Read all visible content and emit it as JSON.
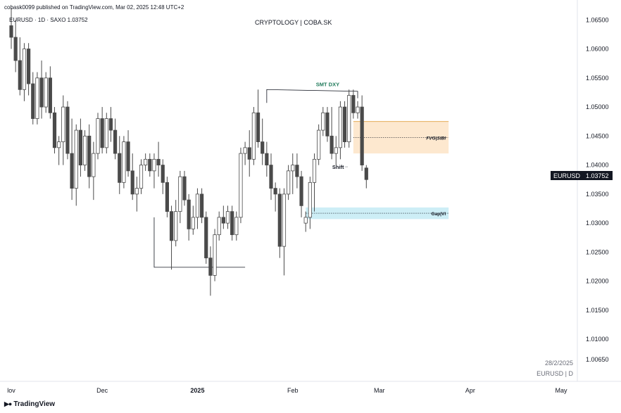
{
  "header": {
    "published_line": "cobask0099 published on TradingView.com, Mar 02, 2025 12:48 UTC+2",
    "symbol_line": "EURUSD · 1D · SAXO  1.03752",
    "center_title": "CRYPTOLOGY | COBA.SK"
  },
  "footer": {
    "brand": "TradingView",
    "brand_icon": "tradingview-logo-icon",
    "date_label": "28/2/2025",
    "symbol_label": "EURUSD | D"
  },
  "price_tag": {
    "symbol": "EURUSD",
    "price": "1.03752"
  },
  "colors": {
    "up_fill": "#ffffff",
    "down_fill": "#4a4a4a",
    "wick": "#4a4a4a",
    "fvg": "#fde8cf",
    "gap": "#cdeef6",
    "smt": "#1f7a5a",
    "tag_bg": "#131722"
  },
  "chart_data": {
    "type": "candlestick",
    "title": "CRYPTOLOGY | COBA.SK",
    "symbol": "EURUSD",
    "interval": "1D",
    "ylim": [
      1.003,
      1.066
    ],
    "y_ticks": [
      1.0065,
      1.01,
      1.015,
      1.02,
      1.025,
      1.03,
      1.035,
      1.04,
      1.045,
      1.05,
      1.055,
      1.06,
      1.065
    ],
    "y_tick_labels": [
      "1.00650",
      "1.01000",
      "1.01500",
      "1.02000",
      "1.02500",
      "1.03000",
      "1.03500",
      "1.04000",
      "1.04500",
      "1.05000",
      "1.05500",
      "1.06000",
      "1.06500"
    ],
    "x_ticks": [
      {
        "label": "lov",
        "index": 0,
        "bold": false
      },
      {
        "label": "Dec",
        "index": 21,
        "bold": false
      },
      {
        "label": "2025",
        "index": 43,
        "bold": true
      },
      {
        "label": "Feb",
        "index": 65,
        "bold": false
      },
      {
        "label": "Mar",
        "index": 85,
        "bold": false
      },
      {
        "label": "Apr",
        "index": 106,
        "bold": false
      },
      {
        "label": "May",
        "index": 127,
        "bold": false
      }
    ],
    "candles": [
      [
        1.064,
        1.067,
        1.06,
        1.062
      ],
      [
        1.062,
        1.065,
        1.056,
        1.058
      ],
      [
        1.058,
        1.062,
        1.052,
        1.053
      ],
      [
        1.053,
        1.061,
        1.051,
        1.06
      ],
      [
        1.06,
        1.061,
        1.052,
        1.054
      ],
      [
        1.054,
        1.056,
        1.047,
        1.048
      ],
      [
        1.048,
        1.056,
        1.047,
        1.055
      ],
      [
        1.055,
        1.058,
        1.048,
        1.05
      ],
      [
        1.05,
        1.056,
        1.049,
        1.055
      ],
      [
        1.055,
        1.057,
        1.048,
        1.049
      ],
      [
        1.049,
        1.05,
        1.042,
        1.043
      ],
      [
        1.043,
        1.045,
        1.04,
        1.044
      ],
      [
        1.044,
        1.052,
        1.04,
        1.05
      ],
      [
        1.05,
        1.051,
        1.041,
        1.042
      ],
      [
        1.042,
        1.048,
        1.034,
        1.036
      ],
      [
        1.036,
        1.047,
        1.033,
        1.046
      ],
      [
        1.046,
        1.048,
        1.038,
        1.04
      ],
      [
        1.04,
        1.046,
        1.039,
        1.045
      ],
      [
        1.045,
        1.047,
        1.036,
        1.038
      ],
      [
        1.038,
        1.044,
        1.034,
        1.042
      ],
      [
        1.042,
        1.049,
        1.041,
        1.048
      ],
      [
        1.048,
        1.05,
        1.042,
        1.043
      ],
      [
        1.043,
        1.049,
        1.042,
        1.048
      ],
      [
        1.048,
        1.05,
        1.044,
        1.046
      ],
      [
        1.046,
        1.048,
        1.041,
        1.042
      ],
      [
        1.042,
        1.045,
        1.035,
        1.037
      ],
      [
        1.037,
        1.045,
        1.036,
        1.044
      ],
      [
        1.044,
        1.046,
        1.038,
        1.039
      ],
      [
        1.039,
        1.042,
        1.034,
        1.035
      ],
      [
        1.035,
        1.038,
        1.032,
        1.036
      ],
      [
        1.036,
        1.041,
        1.035,
        1.04
      ],
      [
        1.04,
        1.042,
        1.039,
        1.041
      ],
      [
        1.041,
        1.042,
        1.038,
        1.039
      ],
      [
        1.039,
        1.042,
        1.036,
        1.041
      ],
      [
        1.041,
        1.044,
        1.038,
        1.04
      ],
      [
        1.04,
        1.041,
        1.035,
        1.037
      ],
      [
        1.037,
        1.038,
        1.031,
        1.032
      ],
      [
        1.032,
        1.033,
        1.022,
        1.027
      ],
      [
        1.027,
        1.034,
        1.026,
        1.032
      ],
      [
        1.032,
        1.039,
        1.03,
        1.038
      ],
      [
        1.038,
        1.039,
        1.033,
        1.034
      ],
      [
        1.034,
        1.035,
        1.027,
        1.029
      ],
      [
        1.029,
        1.033,
        1.028,
        1.031
      ],
      [
        1.031,
        1.036,
        1.029,
        1.035
      ],
      [
        1.035,
        1.036,
        1.03,
        1.031
      ],
      [
        1.031,
        1.032,
        1.023,
        1.024
      ],
      [
        1.024,
        1.026,
        1.0175,
        1.021
      ],
      [
        1.021,
        1.029,
        1.02,
        1.028
      ],
      [
        1.028,
        1.032,
        1.027,
        1.031
      ],
      [
        1.031,
        1.033,
        1.029,
        1.03
      ],
      [
        1.03,
        1.033,
        1.029,
        1.032
      ],
      [
        1.032,
        1.033,
        1.027,
        1.028
      ],
      [
        1.028,
        1.032,
        1.027,
        1.031
      ],
      [
        1.031,
        1.043,
        1.03,
        1.042
      ],
      [
        1.042,
        1.044,
        1.04,
        1.043
      ],
      [
        1.043,
        1.046,
        1.038,
        1.041
      ],
      [
        1.041,
        1.05,
        1.04,
        1.049
      ],
      [
        1.049,
        1.053,
        1.043,
        1.044
      ],
      [
        1.044,
        1.048,
        1.04,
        1.042
      ],
      [
        1.042,
        1.044,
        1.038,
        1.04
      ],
      [
        1.04,
        1.042,
        1.034,
        1.036
      ],
      [
        1.036,
        1.037,
        1.032,
        1.035
      ],
      [
        1.035,
        1.036,
        1.024,
        1.026
      ],
      [
        1.026,
        1.036,
        1.021,
        1.035
      ],
      [
        1.035,
        1.04,
        1.034,
        1.039
      ],
      [
        1.039,
        1.042,
        1.035,
        1.04
      ],
      [
        1.04,
        1.042,
        1.036,
        1.038
      ],
      [
        1.038,
        1.039,
        1.031,
        1.033
      ],
      [
        1.03,
        1.032,
        1.0285,
        1.031
      ],
      [
        1.031,
        1.038,
        1.029,
        1.037
      ],
      [
        1.037,
        1.042,
        1.032,
        1.041
      ],
      [
        1.041,
        1.047,
        1.04,
        1.046
      ],
      [
        1.046,
        1.05,
        1.045,
        1.049
      ],
      [
        1.049,
        1.05,
        1.044,
        1.045
      ],
      [
        1.045,
        1.05,
        1.041,
        1.042
      ],
      [
        1.042,
        1.045,
        1.04,
        1.043
      ],
      [
        1.043,
        1.051,
        1.041,
        1.05
      ],
      [
        1.05,
        1.051,
        1.043,
        1.044
      ],
      [
        1.044,
        1.053,
        1.043,
        1.052
      ],
      [
        1.052,
        1.053,
        1.048,
        1.049
      ],
      [
        1.049,
        1.051,
        1.048,
        1.05
      ],
      [
        1.05,
        1.052,
        1.039,
        1.04
      ],
      [
        1.0395,
        1.04,
        1.036,
        1.0375
      ]
    ],
    "annotations": [
      {
        "text": "SMT DXY",
        "type": "line",
        "x_start_index": 59,
        "x_end_index": 80,
        "y_start": 1.053,
        "y_end": 1.0527
      },
      {
        "text": "",
        "type": "line",
        "x_start_index": 33,
        "x_end_index": 54,
        "y": 1.0224
      },
      {
        "text": "FVG|SIBI",
        "type": "zone",
        "x_start_index": 79,
        "x_end_index": 101,
        "y_top": 1.0475,
        "y_bottom": 1.042
      },
      {
        "text": "Gap|VI",
        "type": "zone",
        "x_start_index": 68,
        "x_end_index": 101,
        "y_top": 1.0327,
        "y_bottom": 1.0307
      },
      {
        "text": "Shift",
        "type": "label",
        "x_index": 77,
        "y": 1.0397
      }
    ]
  }
}
